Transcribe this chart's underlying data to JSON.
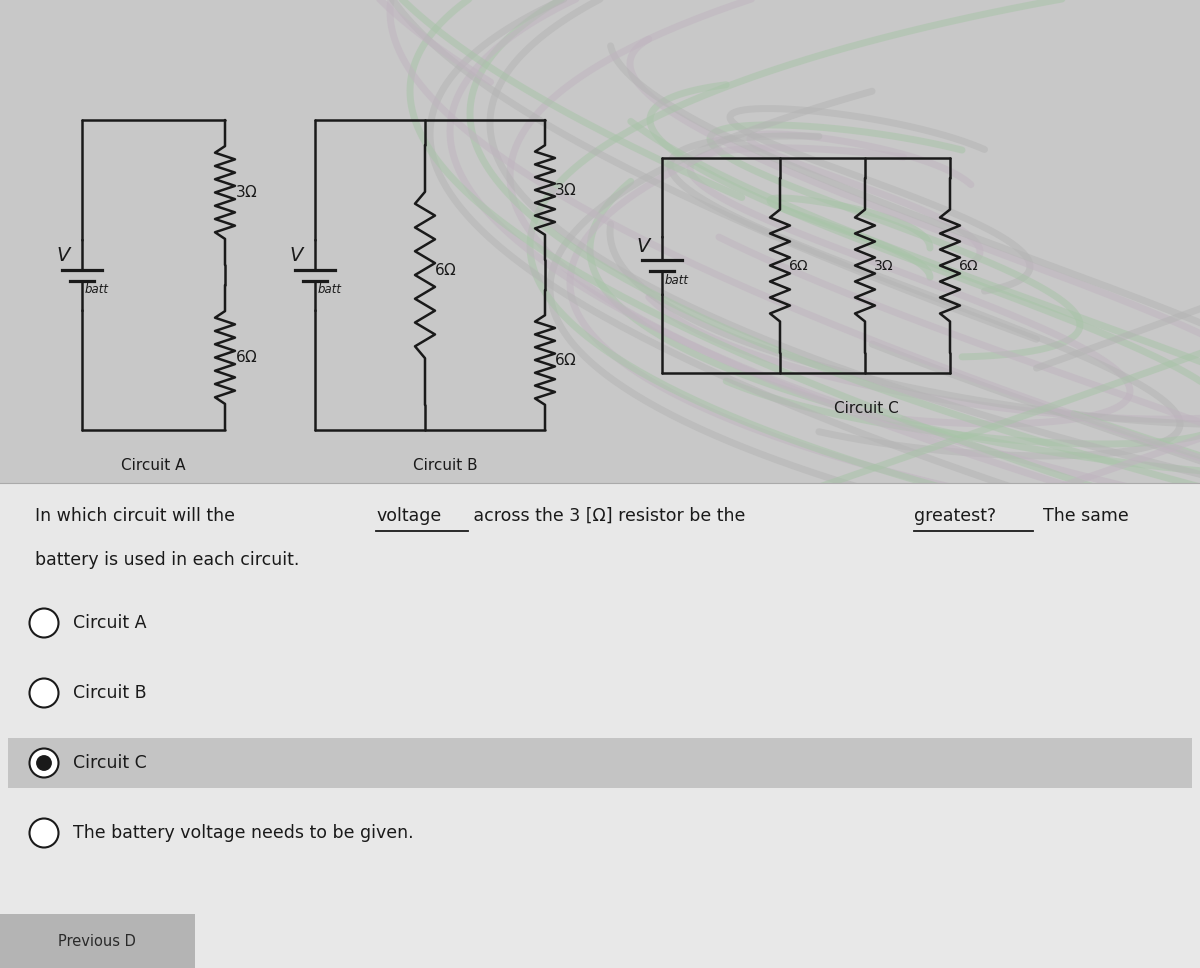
{
  "lc": "#1a1a1a",
  "lw": 1.8,
  "bg_upper": "#c8c8c8",
  "bg_lower": "#e8e8e8",
  "highlight_color": "#c0c0c0",
  "circuit_labels": [
    "Circuit A",
    "Circuit B",
    "Circuit C"
  ],
  "q_line1_p1": "In which circuit will the ",
  "q_line1_ul1": "voltage",
  "q_line1_p2": " across the 3 [Ω] resistor be the ",
  "q_line1_ul2": "greatest?",
  "q_line1_p3": "  The same",
  "q_line2": "battery is used in each circuit.",
  "options": [
    "Circuit A",
    "Circuit B",
    "Circuit C",
    "The battery voltage needs to be given."
  ],
  "selected_idx": 2,
  "prev_label": "Previous D",
  "swirl_colors": [
    "#a8c4a8",
    "#c8b8c8",
    "#b8b8b8"
  ]
}
